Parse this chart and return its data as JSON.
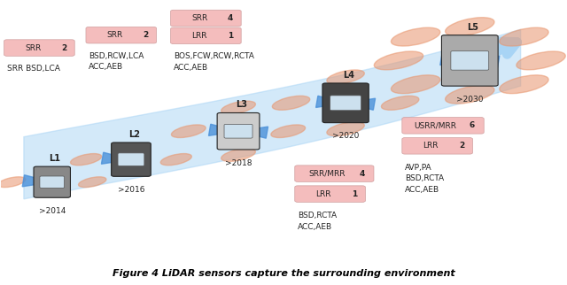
{
  "title": "",
  "caption": "Figure 4 LiDAR sensors capture the surrounding environment",
  "background_color": "#ffffff",
  "levels": [
    "L1",
    "L2",
    "L3",
    "L4",
    "L5"
  ],
  "years": [
    ">2014",
    ">2016",
    ">2018",
    ">2020",
    ">2030"
  ],
  "arrow_color": "#a8d4f5",
  "sensor_ellipse_color": "#e8956d",
  "blue_triangle_color": "#4a90d9",
  "label_box_color": "#f4b8b8",
  "car_colors": [
    "#888888",
    "#555555",
    "#cccccc",
    "#444444",
    "#aaaaaa"
  ],
  "font_size_small": 6.5,
  "font_size_medium": 7,
  "font_size_large": 8
}
